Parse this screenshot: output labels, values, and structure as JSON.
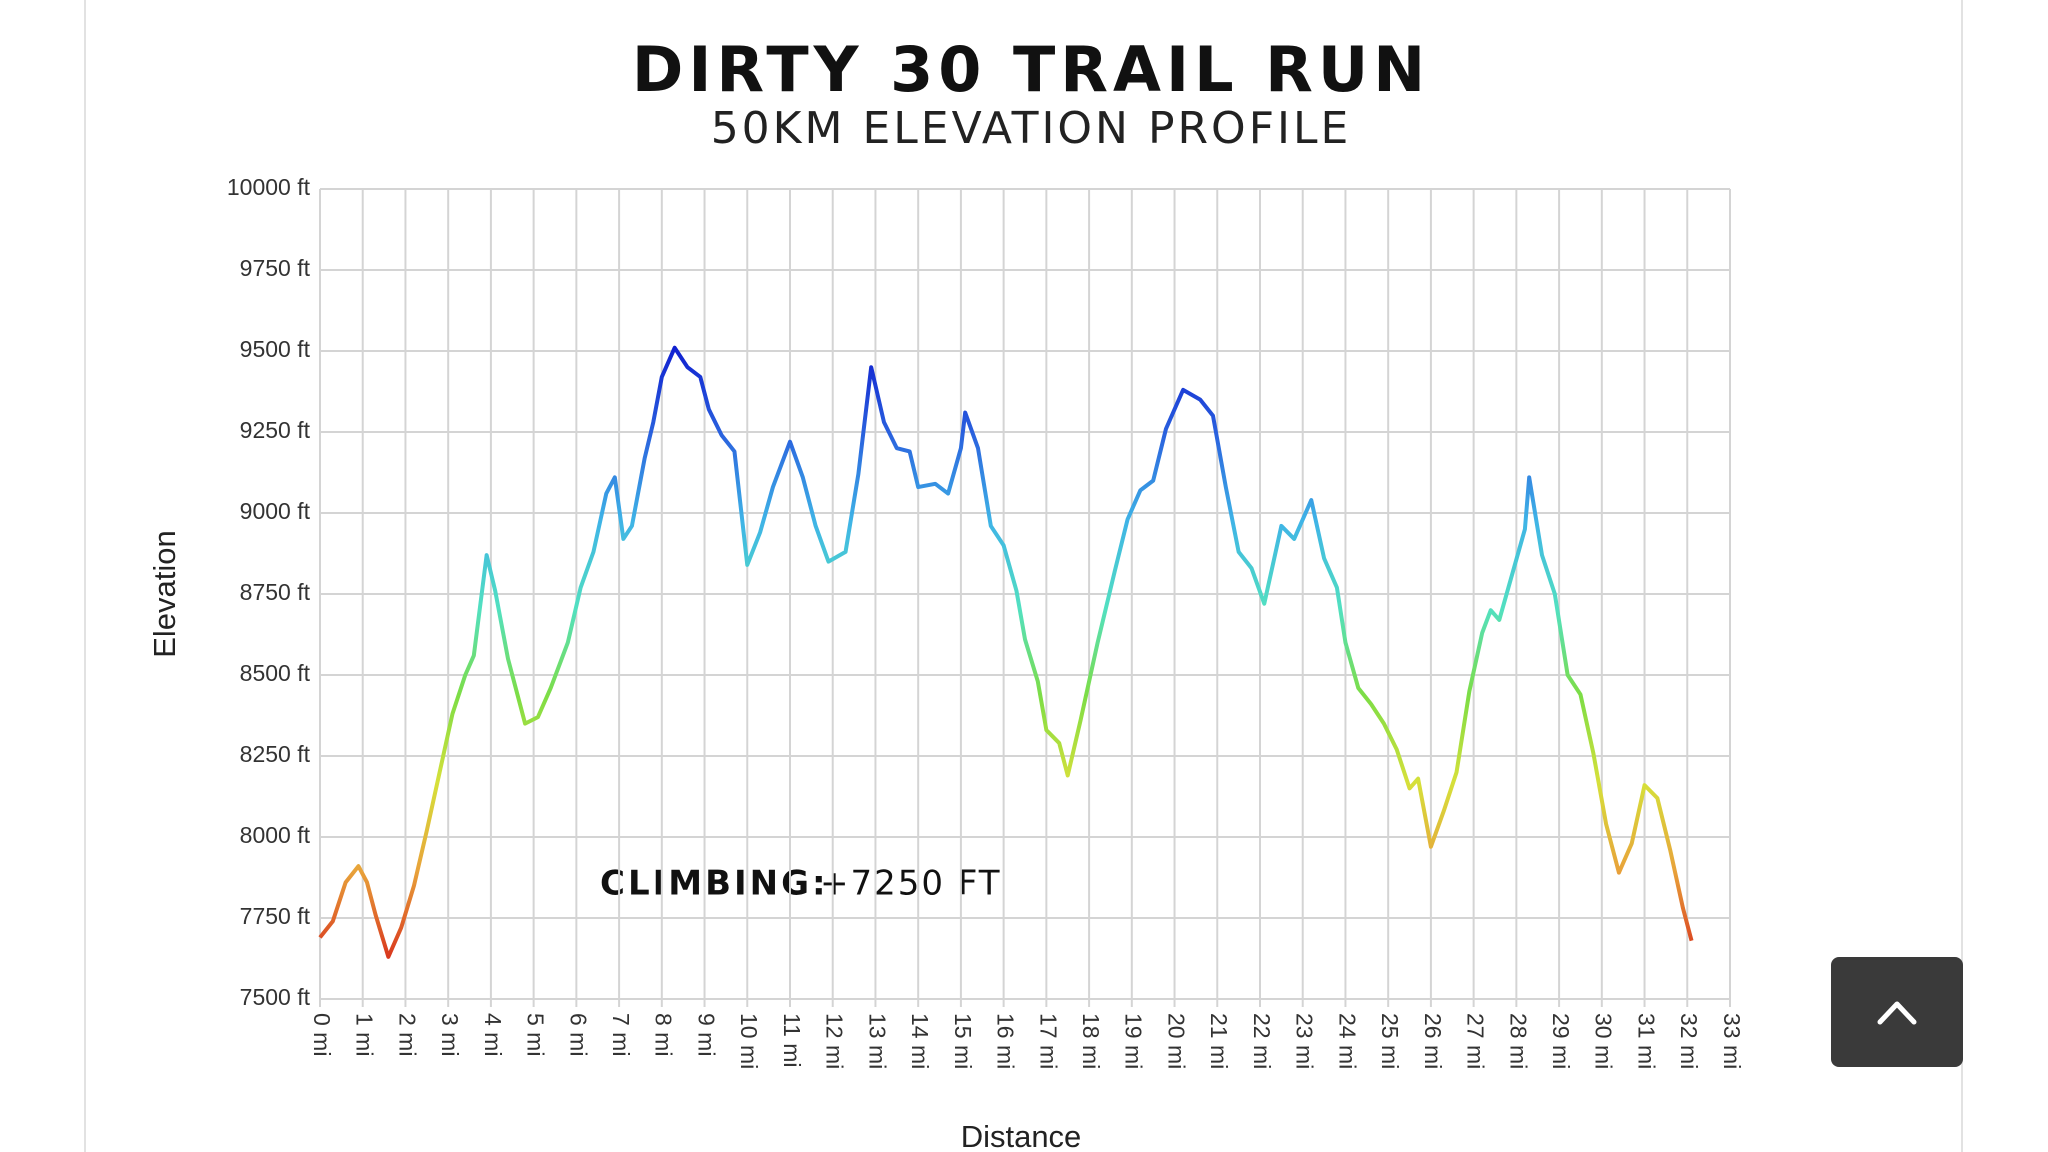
{
  "chart_data": {
    "type": "line",
    "title": "DIRTY 30 TRAIL RUN",
    "subtitle": "50KM ELEVATION PROFILE",
    "x_label": "Distance",
    "y_label": "Elevation",
    "annotation": {
      "label": "CLIMBING:",
      "value": "+7250 FT"
    },
    "x": [
      0,
      0.3,
      0.6,
      0.9,
      1.1,
      1.3,
      1.6,
      1.9,
      2.2,
      2.5,
      2.8,
      3.1,
      3.4,
      3.6,
      3.9,
      4.1,
      4.4,
      4.8,
      5.1,
      5.4,
      5.8,
      6.1,
      6.4,
      6.7,
      6.9,
      7.1,
      7.3,
      7.6,
      7.8,
      8.0,
      8.3,
      8.6,
      8.9,
      9.1,
      9.4,
      9.7,
      10.0,
      10.3,
      10.6,
      11.0,
      11.3,
      11.6,
      11.9,
      12.3,
      12.6,
      12.9,
      13.2,
      13.5,
      13.8,
      14.0,
      14.4,
      14.7,
      15.0,
      15.1,
      15.4,
      15.7,
      16.0,
      16.3,
      16.5,
      16.8,
      17.0,
      17.3,
      17.5,
      17.8,
      18.2,
      18.6,
      18.9,
      19.2,
      19.5,
      19.8,
      20.2,
      20.6,
      20.9,
      21.2,
      21.5,
      21.8,
      22.1,
      22.5,
      22.8,
      23.2,
      23.5,
      23.8,
      24.0,
      24.3,
      24.6,
      24.9,
      25.2,
      25.5,
      25.7,
      26.0,
      26.3,
      26.6,
      26.9,
      27.2,
      27.4,
      27.6,
      27.9,
      28.2,
      28.3,
      28.6,
      28.9,
      29.2,
      29.5,
      29.8,
      30.1,
      30.4,
      30.7,
      31.0,
      31.3,
      31.6,
      31.9,
      32.1
    ],
    "series": [
      {
        "name": "Elevation",
        "values": [
          7690,
          7740,
          7860,
          7910,
          7860,
          7760,
          7630,
          7720,
          7850,
          8020,
          8200,
          8380,
          8500,
          8560,
          8870,
          8760,
          8550,
          8350,
          8370,
          8460,
          8600,
          8770,
          8880,
          9060,
          9110,
          8920,
          8960,
          9170,
          9280,
          9420,
          9510,
          9450,
          9420,
          9320,
          9240,
          9190,
          8840,
          8940,
          9080,
          9220,
          9110,
          8960,
          8850,
          8880,
          9120,
          9450,
          9280,
          9200,
          9190,
          9080,
          9090,
          9060,
          9200,
          9310,
          9200,
          8960,
          8900,
          8760,
          8610,
          8480,
          8330,
          8290,
          8190,
          8360,
          8600,
          8820,
          8980,
          9070,
          9100,
          9260,
          9380,
          9350,
          9300,
          9080,
          8880,
          8830,
          8720,
          8960,
          8920,
          9040,
          8860,
          8770,
          8600,
          8460,
          8410,
          8350,
          8270,
          8150,
          8180,
          7970,
          8080,
          8200,
          8450,
          8630,
          8700,
          8670,
          8810,
          8950,
          9110,
          8870,
          8750,
          8500,
          8440,
          8260,
          8040,
          7890,
          7980,
          8160,
          8120,
          7960,
          7780,
          7680
        ]
      }
    ],
    "colormap": [
      "#d9381e",
      "#e8a33a",
      "#d6e03a",
      "#7ddd45",
      "#52e0c0",
      "#3fb4e6",
      "#2a62de",
      "#1020d0"
    ],
    "xlim": [
      0,
      33
    ],
    "ylim": [
      7500,
      10000
    ],
    "xticks": [
      {
        "value": 0,
        "label": "0 mi"
      },
      {
        "value": 1,
        "label": "1 mi"
      },
      {
        "value": 2,
        "label": "2 mi"
      },
      {
        "value": 3,
        "label": "3 mi"
      },
      {
        "value": 4,
        "label": "4 mi"
      },
      {
        "value": 5,
        "label": "5 mi"
      },
      {
        "value": 6,
        "label": "6 mi"
      },
      {
        "value": 7,
        "label": "7 mi"
      },
      {
        "value": 8,
        "label": "8 mi"
      },
      {
        "value": 9,
        "label": "9 mi"
      },
      {
        "value": 10,
        "label": "10 mi"
      },
      {
        "value": 11,
        "label": "11 mi"
      },
      {
        "value": 12,
        "label": "12 mi"
      },
      {
        "value": 13,
        "label": "13 mi"
      },
      {
        "value": 14,
        "label": "14 mi"
      },
      {
        "value": 15,
        "label": "15 mi"
      },
      {
        "value": 16,
        "label": "16 mi"
      },
      {
        "value": 17,
        "label": "17 mi"
      },
      {
        "value": 18,
        "label": "18 mi"
      },
      {
        "value": 19,
        "label": "19 mi"
      },
      {
        "value": 20,
        "label": "20 mi"
      },
      {
        "value": 21,
        "label": "21 mi"
      },
      {
        "value": 22,
        "label": "22 mi"
      },
      {
        "value": 23,
        "label": "23 mi"
      },
      {
        "value": 24,
        "label": "24 mi"
      },
      {
        "value": 25,
        "label": "25 mi"
      },
      {
        "value": 26,
        "label": "26 mi"
      },
      {
        "value": 27,
        "label": "27 mi"
      },
      {
        "value": 28,
        "label": "28 mi"
      },
      {
        "value": 29,
        "label": "29 mi"
      },
      {
        "value": 30,
        "label": "30 mi"
      },
      {
        "value": 31,
        "label": "31 mi"
      },
      {
        "value": 32,
        "label": "32 mi"
      },
      {
        "value": 33,
        "label": "33 mi"
      }
    ],
    "yticks": [
      {
        "value": 7500,
        "label": "7500 ft"
      },
      {
        "value": 7750,
        "label": "7750 ft"
      },
      {
        "value": 8000,
        "label": "8000 ft"
      },
      {
        "value": 8250,
        "label": "8250 ft"
      },
      {
        "value": 8500,
        "label": "8500 ft"
      },
      {
        "value": 8750,
        "label": "8750 ft"
      },
      {
        "value": 9000,
        "label": "9000 ft"
      },
      {
        "value": 9250,
        "label": "9250 ft"
      },
      {
        "value": 9500,
        "label": "9500 ft"
      },
      {
        "value": 9750,
        "label": "9750 ft"
      },
      {
        "value": 10000,
        "label": "10000 ft"
      }
    ],
    "grid": true
  }
}
